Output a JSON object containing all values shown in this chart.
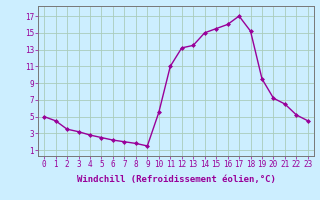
{
  "x": [
    0,
    1,
    2,
    3,
    4,
    5,
    6,
    7,
    8,
    9,
    10,
    11,
    12,
    13,
    14,
    15,
    16,
    17,
    18,
    19,
    20,
    21,
    22,
    23
  ],
  "y": [
    5.0,
    4.5,
    3.5,
    3.2,
    2.8,
    2.5,
    2.2,
    2.0,
    1.8,
    1.5,
    5.5,
    11.0,
    13.2,
    13.5,
    15.0,
    15.5,
    16.0,
    17.0,
    15.2,
    9.5,
    7.2,
    6.5,
    5.2,
    4.5
  ],
  "line_color": "#990099",
  "marker": "D",
  "markersize": 2.0,
  "linewidth": 1.0,
  "xlabel": "Windchill (Refroidissement éolien,°C)",
  "xlabel_fontsize": 6.5,
  "bg_color": "#cceeff",
  "grid_color": "#aaccbb",
  "yticks": [
    1,
    3,
    5,
    7,
    9,
    11,
    13,
    15,
    17
  ],
  "ylim": [
    0.3,
    18.2
  ],
  "xlim": [
    -0.5,
    23.5
  ],
  "xticks": [
    0,
    1,
    2,
    3,
    4,
    5,
    6,
    7,
    8,
    9,
    10,
    11,
    12,
    13,
    14,
    15,
    16,
    17,
    18,
    19,
    20,
    21,
    22,
    23
  ],
  "tick_fontsize": 5.5,
  "tick_color": "#990099",
  "spine_color": "#777777"
}
